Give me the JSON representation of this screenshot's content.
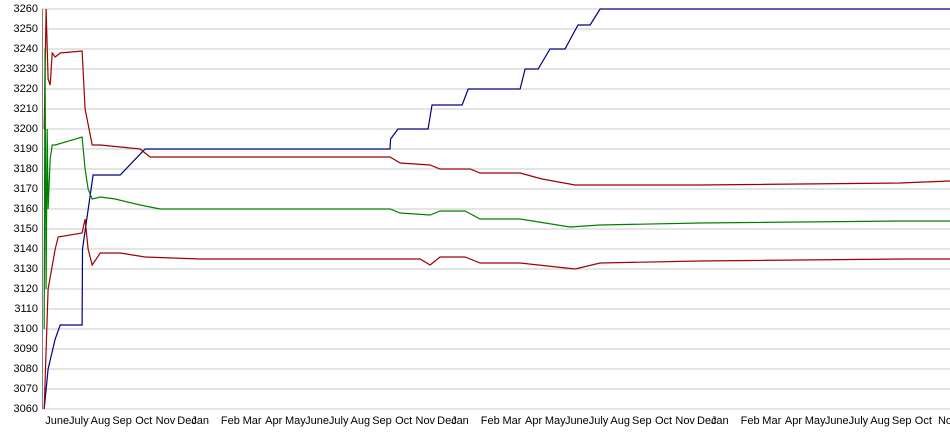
{
  "chart_data": {
    "type": "line",
    "categories": [
      "June",
      "July",
      "Aug",
      "Sep",
      "Oct",
      "Nov",
      "Dec",
      "Jan",
      "Feb",
      "Mar",
      "Apr",
      "May",
      "June",
      "July",
      "Aug",
      "Sep",
      "Oct",
      "Nov",
      "Dec",
      "Jan",
      "Feb",
      "Mar",
      "Apr",
      "May",
      "June",
      "July",
      "Aug",
      "Sep",
      "Oct",
      "Nov",
      "Dec",
      "Jan",
      "Feb",
      "Mar",
      "Apr",
      "May",
      "June",
      "July",
      "Aug",
      "Sep",
      "Oct",
      "No"
    ],
    "category_x": [
      0,
      1,
      2,
      3,
      4,
      5,
      6,
      6.6,
      8,
      9,
      10,
      11,
      12,
      13,
      14,
      15,
      16,
      17,
      18,
      18.6,
      20,
      21,
      22,
      23,
      24,
      25,
      26,
      27,
      28,
      29,
      30,
      30.6,
      32,
      33,
      34,
      35,
      36,
      37,
      38,
      39,
      40,
      41
    ],
    "xlim": [
      -0.7,
      41.23
    ],
    "ylim": [
      3060,
      3260
    ],
    "yticks": [
      3060,
      3070,
      3080,
      3090,
      3100,
      3110,
      3120,
      3130,
      3140,
      3150,
      3160,
      3170,
      3180,
      3190,
      3200,
      3210,
      3220,
      3230,
      3240,
      3250,
      3260
    ],
    "grid": true,
    "series": [
      {
        "color": "#000080",
        "x": [
          -0.6,
          -0.42,
          -0.09,
          0.14,
          1.15,
          1.17,
          1.66,
          2.91,
          4.06,
          15.37,
          15.4,
          15.74,
          17.13,
          17.31,
          18.7,
          18.98,
          21.38,
          21.61,
          22.21,
          22.76,
          23.45,
          24.05,
          24.61,
          25.07,
          41.23
        ],
        "values": [
          3060,
          3080,
          3095,
          3102,
          3102,
          3140,
          3177,
          3177,
          3190,
          3190,
          3195,
          3200,
          3200,
          3212,
          3212,
          3220,
          3220,
          3230,
          3230,
          3240,
          3240,
          3252,
          3252,
          3260,
          3260
        ]
      },
      {
        "color": "#a00000",
        "x": [
          -0.6,
          -0.51,
          -0.42,
          -0.32,
          -0.23,
          -0.09,
          0.14,
          1.15,
          1.29,
          1.62,
          1.99,
          3.83,
          4.29,
          15.37,
          15.84,
          17.22,
          17.68,
          19.07,
          19.53,
          21.38,
          22.39,
          23.92,
          25.07,
          29.69,
          38.92,
          41.23
        ],
        "values": [
          3200,
          3260,
          3225,
          3222,
          3238,
          3236,
          3238,
          3239,
          3210,
          3192,
          3192,
          3190,
          3186,
          3186,
          3183,
          3182,
          3180,
          3180,
          3178,
          3178,
          3175,
          3172,
          3172,
          3172,
          3173,
          3174
        ]
      },
      {
        "color": "#008000",
        "x": [
          -0.6,
          -0.56,
          -0.51,
          -0.46,
          -0.42,
          -0.32,
          -0.23,
          -0.09,
          1.15,
          1.29,
          1.43,
          1.62,
          1.99,
          2.68,
          3.83,
          4.76,
          15.37,
          15.84,
          17.22,
          17.68,
          18.84,
          19.53,
          21.38,
          23.68,
          25.07,
          29.69,
          38.92,
          41.23
        ],
        "values": [
          3100,
          3240,
          3120,
          3200,
          3160,
          3185,
          3192,
          3192,
          3196,
          3180,
          3170,
          3165,
          3166,
          3165,
          3162,
          3160,
          3160,
          3158,
          3157,
          3159,
          3159,
          3155,
          3155,
          3151,
          3152,
          3153,
          3154,
          3154
        ]
      },
      {
        "color": "#a00000",
        "x": [
          -0.6,
          -0.42,
          -0.09,
          0.05,
          1.15,
          1.29,
          1.43,
          1.62,
          1.99,
          2.91,
          4.06,
          6.6,
          16.76,
          17.22,
          17.68,
          18.84,
          19.53,
          21.38,
          23.92,
          25.07,
          29.69,
          38.92,
          41.23
        ],
        "values": [
          3060,
          3120,
          3140,
          3146,
          3148,
          3155,
          3140,
          3132,
          3138,
          3138,
          3136,
          3135,
          3135,
          3132,
          3136,
          3136,
          3133,
          3133,
          3130,
          3133,
          3134,
          3135,
          3135
        ]
      }
    ]
  }
}
